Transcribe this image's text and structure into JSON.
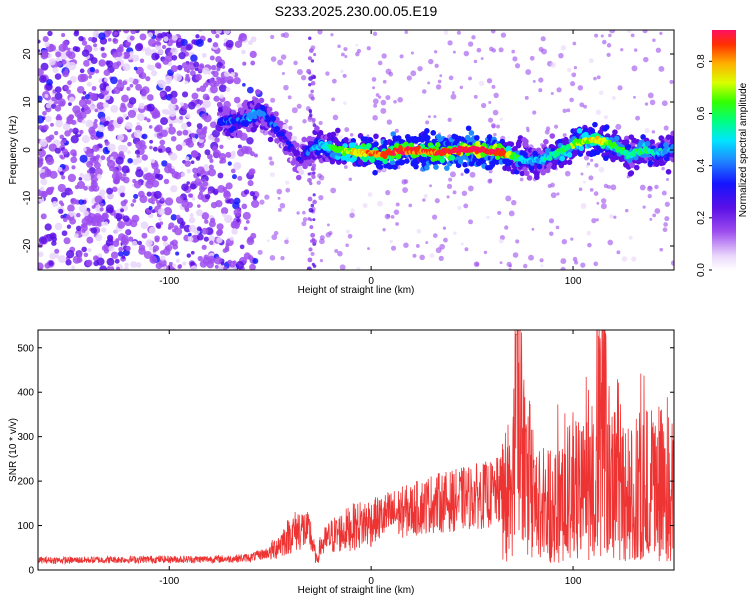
{
  "title": "S233.2025.230.00.05.E19",
  "chart_data": [
    {
      "type": "heatmap",
      "name": "spectrogram",
      "xlabel": "Height of straight line (km)",
      "ylabel": "Frequency (Hz)",
      "xlim": [
        -165,
        150
      ],
      "ylim": [
        -25,
        25
      ],
      "xticks": [
        -100,
        0,
        100
      ],
      "yticks": [
        -20,
        -10,
        0,
        10,
        20
      ],
      "colorbar": {
        "label": "Normalized spectral amplitude",
        "range": [
          0,
          0.92
        ],
        "ticks": [
          0.0,
          0.2,
          0.4,
          0.6,
          0.8
        ]
      },
      "ridge": {
        "x": [
          -75,
          -65,
          -55,
          -48,
          -42,
          -35,
          -30,
          -25,
          -15,
          -5,
          5,
          15,
          25,
          35,
          45,
          55,
          65,
          72,
          78,
          85,
          95,
          105,
          112,
          120,
          128,
          135,
          142,
          150
        ],
        "frequency": [
          6,
          6,
          8,
          5,
          2,
          -2,
          0,
          1,
          0,
          -0.5,
          -1,
          0,
          -0.3,
          -0.5,
          0,
          0,
          -0.5,
          -1.5,
          -2.5,
          -2,
          0,
          2,
          2,
          1,
          -1,
          0,
          -0.5,
          0
        ],
        "amplitude": [
          0.3,
          0.35,
          0.4,
          0.3,
          0.25,
          0.2,
          0.35,
          0.45,
          0.6,
          0.75,
          0.8,
          0.85,
          0.8,
          0.85,
          0.9,
          0.9,
          0.85,
          0.55,
          0.4,
          0.45,
          0.55,
          0.65,
          0.7,
          0.6,
          0.5,
          0.55,
          0.45,
          0.4
        ]
      }
    },
    {
      "type": "line",
      "name": "snr",
      "xlabel": "Height of straight line (km)",
      "ylabel": "SNR (10 * v/v)",
      "xlim": [
        -165,
        150
      ],
      "ylim": [
        0,
        540
      ],
      "xticks": [
        -100,
        0,
        100
      ],
      "yticks": [
        0,
        100,
        200,
        300,
        400,
        500
      ],
      "color": "#ee3333",
      "series": [
        {
          "name": "SNR",
          "x": [
            -165,
            -150,
            -130,
            -110,
            -90,
            -70,
            -60,
            -50,
            -45,
            -40,
            -35,
            -30,
            -27,
            -25,
            -20,
            -10,
            0,
            10,
            20,
            30,
            40,
            50,
            60,
            65,
            70,
            72,
            75,
            80,
            90,
            100,
            110,
            115,
            120,
            130,
            140,
            150
          ],
          "y": [
            22,
            22,
            23,
            24,
            24,
            25,
            28,
            40,
            60,
            80,
            95,
            80,
            20,
            55,
            75,
            95,
            110,
            125,
            135,
            150,
            155,
            165,
            170,
            180,
            200,
            530,
            230,
            140,
            160,
            175,
            185,
            330,
            190,
            185,
            200,
            180
          ]
        }
      ]
    }
  ]
}
